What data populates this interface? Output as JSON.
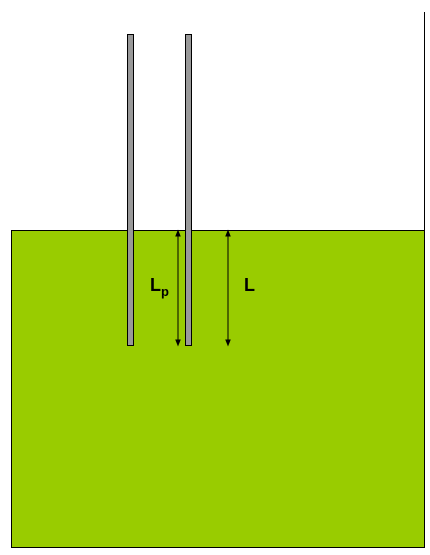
{
  "colors": {
    "liquid": "#99cc00",
    "rod": "#999999",
    "outline": "#000000",
    "background": "#ffffff"
  },
  "labels": {
    "lp_main": "L",
    "lp_sub": "p",
    "l": "L"
  }
}
